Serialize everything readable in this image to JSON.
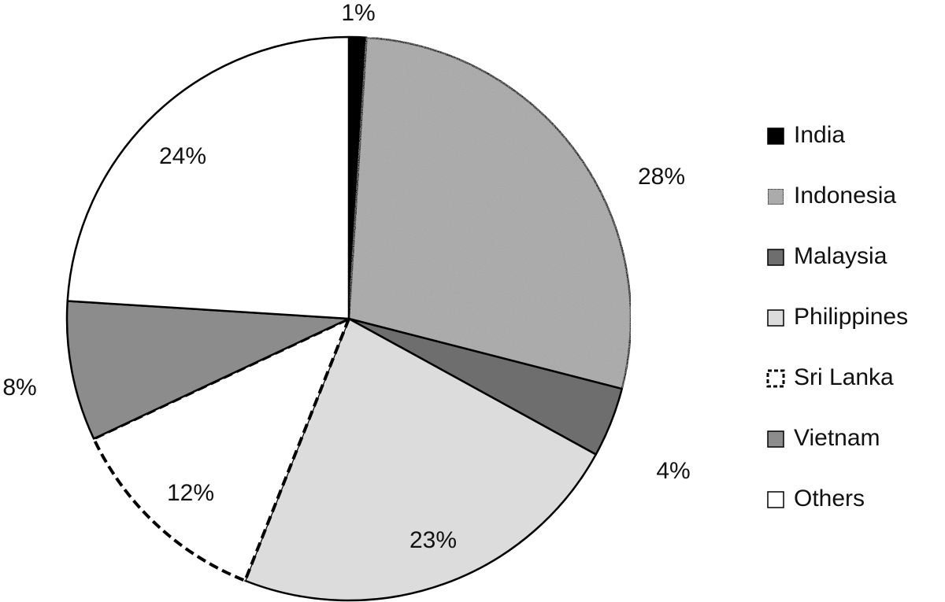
{
  "chart_data": {
    "type": "pie",
    "categories": [
      "India",
      "Indonesia",
      "Malaysia",
      "Philippines",
      "Sri Lanka",
      "Vietnam",
      "Others"
    ],
    "values": [
      1,
      28,
      4,
      23,
      12,
      8,
      24
    ],
    "value_labels": [
      "1%",
      "28%",
      "4%",
      "23%",
      "12%",
      "8%",
      "24%"
    ],
    "colors": [
      "#000000",
      "#a8a8a8",
      "#6e6e6e",
      "#dcdcdc",
      "#ffffff",
      "#8c8c8c",
      "#ffffff"
    ],
    "edge_styles": [
      "solid",
      "solid",
      "solid",
      "solid",
      "dashed",
      "solid",
      "solid"
    ],
    "legend": "right"
  }
}
